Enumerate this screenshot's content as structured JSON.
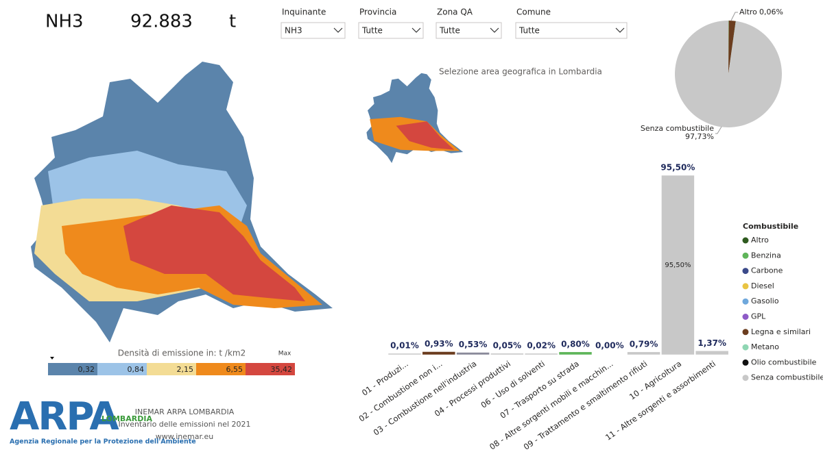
{
  "header": {
    "pollutant": "NH3",
    "total": "92.883",
    "unit": "t"
  },
  "filters": [
    {
      "label": "Inquinante",
      "value": "NH3"
    },
    {
      "label": "Provincia",
      "value": "Tutte"
    },
    {
      "label": "Zona QA",
      "value": "Tutte"
    },
    {
      "label": "Comune",
      "value": "Tutte"
    }
  ],
  "mini_map_caption": "Selezione area geografica in Lombardia",
  "map_legend": {
    "title": "Densità di emissione in:  t  /km2",
    "max_label": "Max",
    "classes": [
      {
        "label": "0,32",
        "color": "#5b84ab"
      },
      {
        "label": "0,84",
        "color": "#9cc3e7"
      },
      {
        "label": "2,15",
        "color": "#f3dc95"
      },
      {
        "label": "6,55",
        "color": "#ef8a1c"
      },
      {
        "label": "35,42",
        "color": "#d4473f"
      }
    ]
  },
  "chart_data": [
    {
      "type": "pie",
      "categories": [
        "Altro",
        "Benzina",
        "Carbone",
        "Diesel",
        "Gasolio",
        "GPL",
        "Legna e similari",
        "Metano",
        "Olio combustibile",
        "Senza combustibile"
      ],
      "values": [
        0.06,
        0.05,
        0,
        0.03,
        0.02,
        0,
        2.04,
        0.05,
        0.02,
        97.73
      ],
      "value_labels": [
        "0,06%",
        null,
        null,
        null,
        null,
        null,
        null,
        null,
        null,
        "97,73%"
      ],
      "colors": [
        "#2f5a1f",
        "#5fb55a",
        "#3b4a8a",
        "#e9c443",
        "#6fa8dc",
        "#8e5bc7",
        "#6b3d1f",
        "#8fd6b3",
        "#111111",
        "#c8c8c8"
      ],
      "legend_title": "Combustibile"
    },
    {
      "type": "bar",
      "categories": [
        "01 - Produzi...",
        "02 - Combustione non i...",
        "03 - Combustione nell'industria",
        "04 - Processi produttivi",
        "06 - Uso di solventi",
        "07 - Trasporto su strada",
        "08 - Altre sorgenti mobili e macchin...",
        "09 - Trattamento e smaltimento rifiuti",
        "10 - Agricoltura",
        "11 - Altre sorgenti e assorbimenti"
      ],
      "values": [
        0.01,
        0.93,
        0.53,
        0.05,
        0.02,
        0.8,
        0.0,
        0.79,
        95.5,
        1.37
      ],
      "value_labels": [
        "0,01%",
        "0,93%",
        "0,53%",
        "0,05%",
        "0,02%",
        "0,80%",
        "0,00%",
        "0,79%",
        "95,50%",
        "1,37%"
      ],
      "colors": [
        "#c8c8c8",
        "#6b3d1f",
        "#8a8a9a",
        "#c8c8c8",
        "#c8c8c8",
        "#5fb55a",
        "#c8c8c8",
        "#c8c8c8",
        "#c8c8c8",
        "#c8c8c8"
      ]
    }
  ],
  "footer": {
    "lines": [
      "INEMAR ARPA LOMBARDIA",
      "Inventario delle emissioni nel 2021",
      "www.inemar.eu"
    ]
  },
  "logo": {
    "name": "ARPA",
    "region": "LOMBARDIA",
    "tagline": "Agenzia Regionale per la Protezione dell'Ambiente"
  }
}
